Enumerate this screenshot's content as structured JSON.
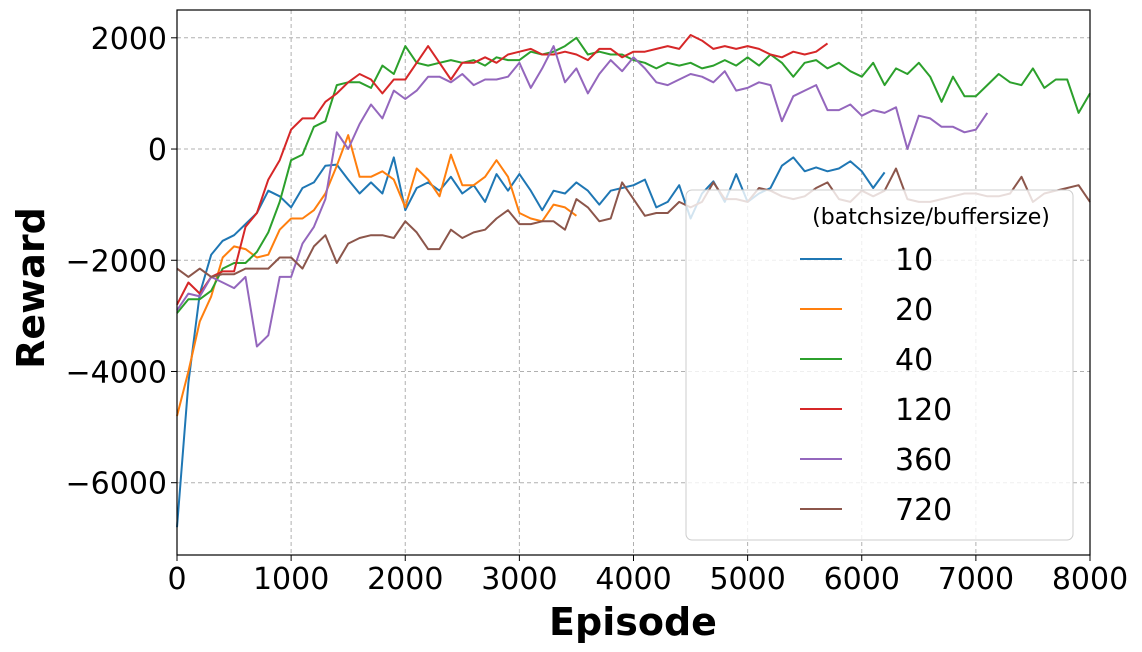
{
  "chart_data": {
    "type": "line",
    "title": "",
    "xlabel": "Episode",
    "ylabel": "Reward",
    "xlim": [
      0,
      8000
    ],
    "ylim": [
      -7300,
      2500
    ],
    "xticks": [
      0,
      1000,
      2000,
      3000,
      4000,
      5000,
      6000,
      7000,
      8000
    ],
    "xtick_labels": [
      "0",
      "1000",
      "2000",
      "3000",
      "4000",
      "5000",
      "6000",
      "7000",
      "8000"
    ],
    "yticks": [
      2000,
      0,
      -2000,
      -4000,
      -6000
    ],
    "ytick_labels": [
      "2000",
      "0",
      "−2000",
      "−4000",
      "−6000"
    ],
    "grid": true,
    "legend": {
      "title": "(batchsize/buffersize)",
      "placement": "bottom-right"
    },
    "series": [
      {
        "name": "10",
        "color": "#1f77b4",
        "x_start": 0,
        "x_step": 100,
        "values": [
          -6800,
          -4200,
          -2600,
          -1900,
          -1650,
          -1550,
          -1350,
          -1150,
          -750,
          -850,
          -1050,
          -700,
          -600,
          -300,
          -280,
          -550,
          -800,
          -600,
          -800,
          -150,
          -1100,
          -700,
          -600,
          -750,
          -500,
          -800,
          -650,
          -950,
          -450,
          -750,
          -450,
          -750,
          -1100,
          -750,
          -800,
          -600,
          -750,
          -1000,
          -750,
          -700,
          -650,
          -550,
          -1050,
          -950,
          -650,
          -1250,
          -800,
          -580,
          -950,
          -450,
          -950,
          -800,
          -700,
          -300,
          -150,
          -400,
          -330,
          -400,
          -350,
          -220,
          -400,
          -700,
          -420
        ]
      },
      {
        "name": "20",
        "color": "#ff7f0e",
        "x_start": 0,
        "x_step": 100,
        "values": [
          -4800,
          -4000,
          -3100,
          -2650,
          -1950,
          -1750,
          -1800,
          -1950,
          -1900,
          -1450,
          -1250,
          -1250,
          -1100,
          -800,
          -300,
          250,
          -500,
          -500,
          -400,
          -550,
          -1050,
          -350,
          -550,
          -850,
          -100,
          -650,
          -650,
          -500,
          -200,
          -500,
          -1150,
          -1250,
          -1300,
          -1000,
          -1050,
          -1200
        ]
      },
      {
        "name": "40",
        "color": "#2ca02c",
        "x_start": 0,
        "x_step": 100,
        "values": [
          -2950,
          -2700,
          -2700,
          -2550,
          -2150,
          -2050,
          -2050,
          -1850,
          -1500,
          -950,
          -200,
          -100,
          400,
          500,
          1150,
          1200,
          1200,
          1100,
          1500,
          1350,
          1850,
          1550,
          1500,
          1550,
          1600,
          1550,
          1600,
          1500,
          1650,
          1600,
          1600,
          1750,
          1700,
          1750,
          1850,
          2000,
          1700,
          1750,
          1700,
          1700,
          1600,
          1550,
          1450,
          1550,
          1500,
          1550,
          1450,
          1500,
          1600,
          1500,
          1650,
          1500,
          1700,
          1550,
          1300,
          1550,
          1600,
          1450,
          1550,
          1400,
          1300,
          1550,
          1150,
          1450,
          1350,
          1550,
          1300,
          850,
          1300,
          950,
          950,
          1150,
          1350,
          1200,
          1150,
          1450,
          1100,
          1250,
          1250,
          650,
          1000
        ]
      },
      {
        "name": "120",
        "color": "#d62728",
        "x_start": 0,
        "x_step": 100,
        "values": [
          -2800,
          -2400,
          -2600,
          -2300,
          -2200,
          -2200,
          -1400,
          -1150,
          -550,
          -200,
          350,
          550,
          550,
          850,
          1000,
          1200,
          1350,
          1250,
          1000,
          1250,
          1250,
          1550,
          1850,
          1550,
          1250,
          1550,
          1550,
          1650,
          1550,
          1700,
          1750,
          1800,
          1700,
          1700,
          1750,
          1700,
          1600,
          1800,
          1800,
          1650,
          1750,
          1750,
          1800,
          1850,
          1800,
          2050,
          1950,
          1800,
          1850,
          1800,
          1850,
          1800,
          1700,
          1650,
          1750,
          1700,
          1750,
          1900
        ]
      },
      {
        "name": "360",
        "color": "#9467bd",
        "x_start": 0,
        "x_step": 100,
        "values": [
          -2900,
          -2600,
          -2650,
          -2300,
          -2400,
          -2500,
          -2300,
          -3550,
          -3350,
          -2300,
          -2300,
          -1700,
          -1400,
          -900,
          300,
          0,
          450,
          800,
          550,
          1050,
          900,
          1050,
          1300,
          1300,
          1200,
          1350,
          1150,
          1250,
          1250,
          1300,
          1550,
          1100,
          1450,
          1850,
          1200,
          1450,
          1000,
          1350,
          1600,
          1400,
          1650,
          1450,
          1200,
          1150,
          1250,
          1350,
          1300,
          1200,
          1400,
          1050,
          1100,
          1200,
          1150,
          500,
          950,
          1050,
          1150,
          700,
          700,
          800,
          600,
          700,
          650,
          750,
          0,
          600,
          550,
          400,
          400,
          300,
          350,
          650
        ]
      },
      {
        "name": "720",
        "color": "#8c564b",
        "x_start": 0,
        "x_step": 100,
        "values": [
          -2150,
          -2300,
          -2150,
          -2300,
          -2250,
          -2250,
          -2150,
          -2150,
          -2150,
          -1950,
          -1950,
          -2150,
          -1750,
          -1550,
          -2050,
          -1700,
          -1600,
          -1550,
          -1550,
          -1600,
          -1300,
          -1500,
          -1800,
          -1800,
          -1450,
          -1600,
          -1500,
          -1450,
          -1250,
          -1100,
          -1350,
          -1350,
          -1300,
          -1300,
          -1450,
          -900,
          -1050,
          -1300,
          -1250,
          -600,
          -900,
          -1200,
          -1150,
          -1150,
          -950,
          -1050,
          -950,
          -600,
          -900,
          -900,
          -950,
          -700,
          -750,
          -850,
          -900,
          -850,
          -700,
          -600,
          -900,
          -950,
          -750,
          -850,
          -750,
          -350,
          -900,
          -950,
          -950,
          -900,
          -850,
          -800,
          -800,
          -850,
          -850,
          -800,
          -500,
          -950,
          -800,
          -750,
          -700,
          -650,
          -950
        ]
      }
    ]
  }
}
